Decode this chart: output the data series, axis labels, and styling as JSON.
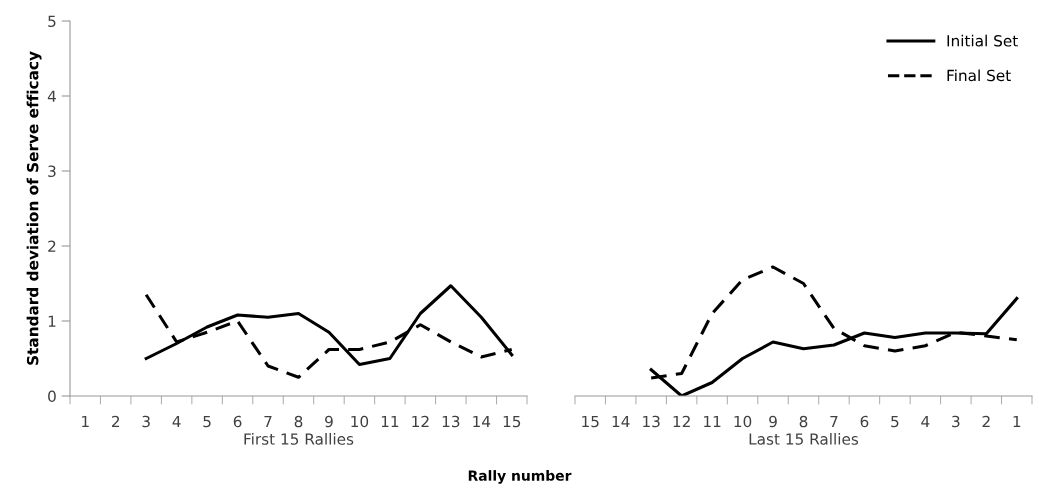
{
  "chart_data": [
    {
      "type": "line",
      "xlabel": "First 15 Rallies",
      "ylabel": "Standard deviation of Serve efficacy",
      "categories": [
        "1",
        "2",
        "3",
        "4",
        "5",
        "6",
        "7",
        "8",
        "9",
        "10",
        "11",
        "12",
        "13",
        "14",
        "15"
      ],
      "ylim": [
        0,
        5
      ],
      "yticks": [
        0,
        1,
        2,
        3,
        4,
        5
      ],
      "grid": false,
      "legend": false,
      "annotations": [
        "Rally number"
      ],
      "series": [
        {
          "color": "#000000",
          "line_style": "solid",
          "values": [
            null,
            null,
            0.5,
            0.7,
            0.92,
            1.08,
            1.05,
            1.1,
            0.85,
            0.42,
            0.5,
            1.1,
            1.47,
            1.05,
            0.55
          ]
        },
        {
          "color": "#000000",
          "line_style": "dashed",
          "values": [
            null,
            null,
            1.35,
            0.72,
            0.85,
            1.0,
            0.4,
            0.25,
            0.62,
            0.62,
            0.72,
            0.95,
            0.72,
            0.52,
            0.62
          ]
        }
      ]
    },
    {
      "type": "line",
      "xlabel": "Last 15 Rallies",
      "categories": [
        "15",
        "14",
        "13",
        "12",
        "11",
        "10",
        "9",
        "8",
        "7",
        "6",
        "5",
        "4",
        "3",
        "2",
        "1"
      ],
      "ylim": [
        0,
        5
      ],
      "yticks": [
        0,
        1,
        2,
        3,
        4,
        5
      ],
      "tick_labels": "x",
      "grid": false,
      "legend": "top right",
      "series": [
        {
          "name": "Initial Set",
          "color": "#000000",
          "line_style": "solid",
          "values": [
            null,
            null,
            0.35,
            0.0,
            0.18,
            0.5,
            0.72,
            0.63,
            0.68,
            0.84,
            0.78,
            0.84,
            0.84,
            0.83,
            1.3
          ]
        },
        {
          "name": "Final Set",
          "color": "#000000",
          "line_style": "dashed",
          "values": [
            null,
            null,
            0.24,
            0.3,
            1.1,
            1.55,
            1.72,
            1.5,
            0.9,
            0.67,
            0.6,
            0.67,
            0.85,
            0.8,
            0.75
          ]
        }
      ]
    }
  ]
}
